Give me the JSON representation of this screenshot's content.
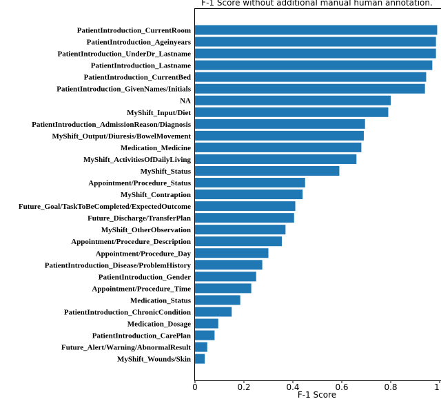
{
  "chart_data": {
    "type": "bar",
    "orientation": "horizontal",
    "title": "F-1 Score without additional manual human annotation.",
    "xlabel": "F-1 Score",
    "ylabel": "",
    "xlim": [
      0,
      1
    ],
    "xticks": [
      "0",
      "0.2",
      "0.4",
      "0.6",
      "0.8",
      "1"
    ],
    "grid": false,
    "bar_color": "#1f77b4",
    "categories": [
      "PatientIntroduction_CurrentRoom",
      "PatientIntroduction_Ageinyears",
      "PatientIntroduction_UnderDr_Lastname",
      "PatientIntroduction_Lastname",
      "PatientIntroduction_CurrentBed",
      "PatientIntroduction_GivenNames/Initials",
      "NA",
      "MyShift_Input/Diet",
      "PatientIntroduction_AdmissionReason/Diagnosis",
      "MyShift_Output/Diuresis/BowelMovement",
      "Medication_Medicine",
      "MyShift_ActivitiesOfDailyLiving",
      "MyShift_Status",
      "Appointment/Procedure_Status",
      "MyShift_Contraption",
      "Future_Goal/TaskToBeCompleted/ExpectedOutcome",
      "Future_Discharge/TransferPlan",
      "MyShift_OtherObservation",
      "Appointment/Procedure_Description",
      "Appointment/Procedure_Day",
      "PatientIntroduction_Disease/ProblemHistory",
      "PatientIntroduction_Gender",
      "Appointment/Procedure_Time",
      "Medication_Status",
      "PatientIntroduction_ChronicCondition",
      "Medication_Dosage",
      "PatientIntroduction_CarePlan",
      "Future_Alert/Warning/AbnormalResult",
      "MyShift_Wounds/Skin"
    ],
    "values": [
      0.99,
      0.985,
      0.985,
      0.97,
      0.945,
      0.94,
      0.8,
      0.79,
      0.695,
      0.69,
      0.68,
      0.66,
      0.59,
      0.45,
      0.44,
      0.41,
      0.405,
      0.37,
      0.355,
      0.3,
      0.275,
      0.25,
      0.23,
      0.185,
      0.15,
      0.095,
      0.08,
      0.05,
      0.04
    ]
  }
}
